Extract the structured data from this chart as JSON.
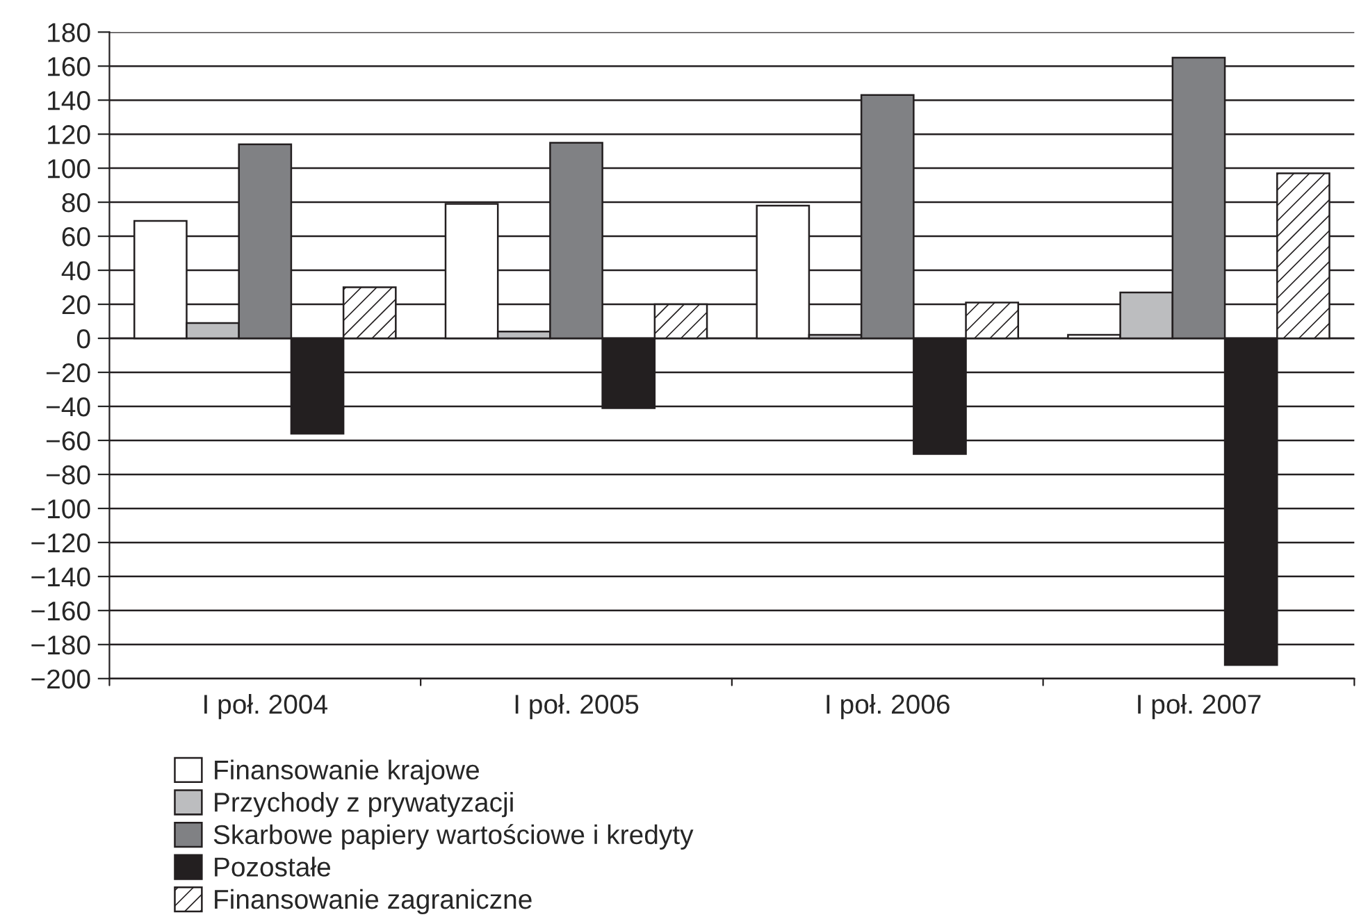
{
  "chart_data": {
    "type": "bar",
    "categories": [
      "I poł. 2004",
      "I poł. 2005",
      "I poł. 2006",
      "I poł. 2007"
    ],
    "series": [
      {
        "name": "Finansowanie krajowe",
        "color": "#ffffff",
        "values": [
          69,
          79,
          78,
          2
        ]
      },
      {
        "name": "Przychody z prywatyzacji",
        "color": "#bcbdbf",
        "values": [
          9,
          4,
          2,
          27
        ]
      },
      {
        "name": "Skarbowe papiery wartościowe i kredyty",
        "color": "#808184",
        "values": [
          114,
          115,
          143,
          165
        ]
      },
      {
        "name": "Pozostałe",
        "color": "#231f20",
        "values": [
          -56,
          -41,
          -68,
          -192
        ]
      },
      {
        "name": "Finansowanie zagraniczne",
        "color": "#ffffff",
        "values": [
          30,
          20,
          21,
          97
        ]
      }
    ],
    "ylim": [
      -200,
      180
    ],
    "yticks": [
      -200,
      -180,
      -160,
      -140,
      -120,
      -100,
      -80,
      -60,
      -40,
      -20,
      0,
      20,
      40,
      60,
      80,
      100,
      120,
      140,
      160,
      180
    ],
    "grid": "y",
    "legend": "bottom"
  }
}
